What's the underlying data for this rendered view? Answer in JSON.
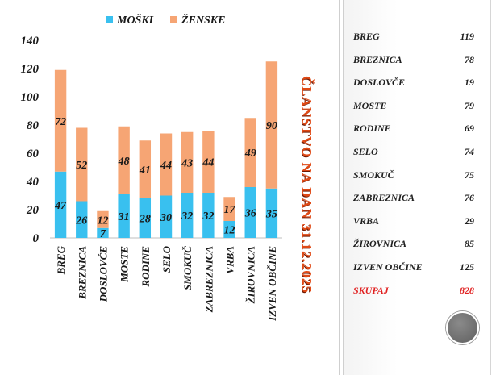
{
  "colors": {
    "male": "#39c0ef",
    "female": "#f6a574",
    "title": "#e04a16",
    "total": "#e02020"
  },
  "title": "ČLANSTVO NA DAN 31.12.2025",
  "chart_data": {
    "type": "bar",
    "stacked": true,
    "categories": [
      "BREG",
      "BREZNICA",
      "DOSLOVČE",
      "MOSTE",
      "RODINE",
      "SELO",
      "SMOKUČ",
      "ZABREZNICA",
      "VRBA",
      "ŽIROVNICA",
      "IZVEN OBČINE"
    ],
    "series": [
      {
        "name": "MOŠKI",
        "color": "#39c0ef",
        "values": [
          47,
          26,
          7,
          31,
          28,
          30,
          32,
          32,
          12,
          36,
          35
        ]
      },
      {
        "name": "ŽENSKE",
        "color": "#f6a574",
        "values": [
          72,
          52,
          12,
          48,
          41,
          44,
          43,
          44,
          17,
          49,
          90
        ]
      }
    ],
    "yticks": [
      0,
      20,
      40,
      60,
      80,
      100,
      120,
      140
    ],
    "ylim": [
      0,
      140
    ],
    "legend_position": "top",
    "grid": false
  },
  "summary": {
    "rows": [
      {
        "name": "BREG",
        "value": "119"
      },
      {
        "name": "BREZNICA",
        "value": "78"
      },
      {
        "name": "DOSLOVČE",
        "value": "19"
      },
      {
        "name": "MOSTE",
        "value": "79"
      },
      {
        "name": "RODINE",
        "value": "69"
      },
      {
        "name": "SELO",
        "value": "74"
      },
      {
        "name": "SMOKUČ",
        "value": "75"
      },
      {
        "name": "ZABREZNICA",
        "value": "76"
      },
      {
        "name": "VRBA",
        "value": "29"
      },
      {
        "name": "ŽIROVNICA",
        "value": "85"
      },
      {
        "name": "IZVEN OBČINE",
        "value": "125"
      }
    ],
    "total": {
      "name": "SKUPAJ",
      "value": "828"
    }
  }
}
